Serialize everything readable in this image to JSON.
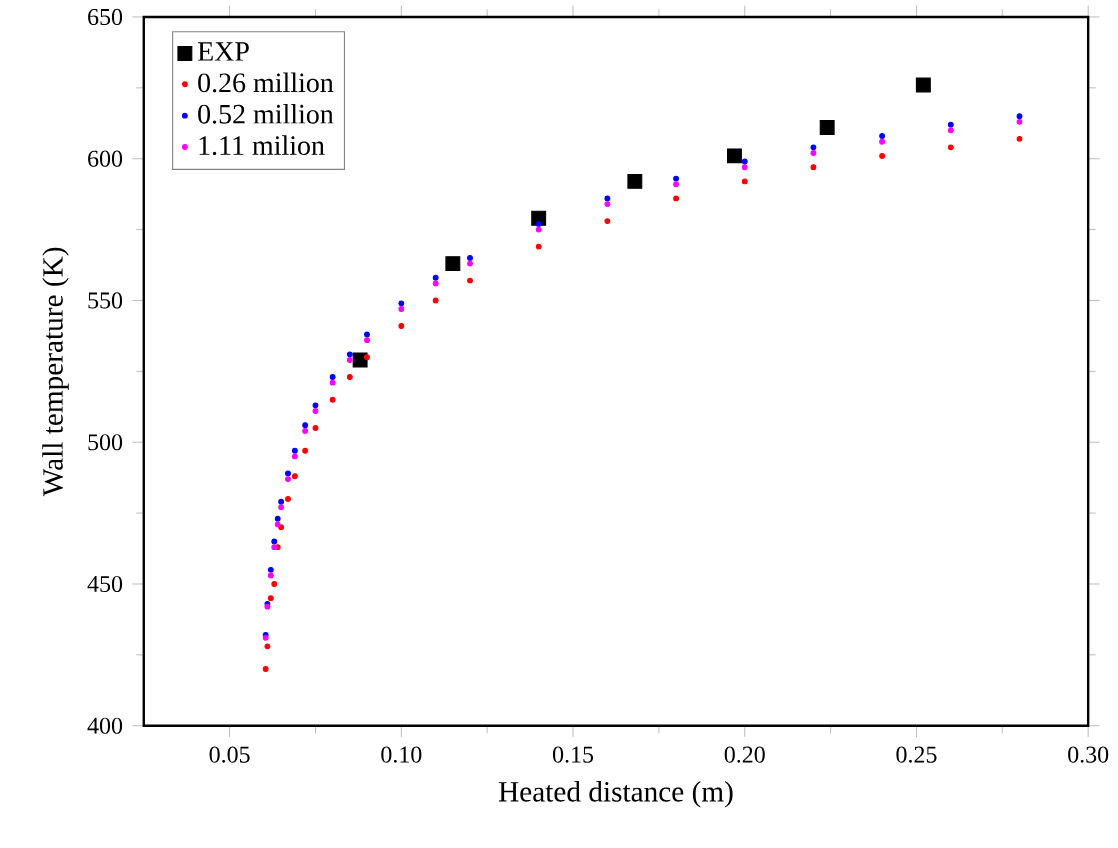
{
  "chart_data": {
    "type": "scatter",
    "xlabel": "Heated distance (m)",
    "ylabel": "Wall temperature (K)",
    "xlim": [
      0.025,
      0.3
    ],
    "ylim": [
      400,
      650
    ],
    "xticks": [
      {
        "value": 0.05,
        "label": "0.05"
      },
      {
        "value": 0.1,
        "label": "0.10"
      },
      {
        "value": 0.15,
        "label": "0.15"
      },
      {
        "value": 0.2,
        "label": "0.20"
      },
      {
        "value": 0.25,
        "label": "0.25"
      },
      {
        "value": 0.3,
        "label": "0.30"
      }
    ],
    "yticks": [
      400,
      450,
      500,
      550,
      600,
      650
    ],
    "legend": "top left",
    "series": [
      {
        "name": "EXP",
        "color": "#000000",
        "marker": "square",
        "x": [
          0.088,
          0.115,
          0.14,
          0.168,
          0.197,
          0.224,
          0.252
        ],
        "values": [
          529,
          563,
          579,
          592,
          601,
          611,
          626
        ]
      },
      {
        "name": "0.26 million",
        "color": "#ff0000",
        "marker": "circle",
        "x": [
          0.0605,
          0.061,
          0.062,
          0.063,
          0.064,
          0.065,
          0.067,
          0.069,
          0.072,
          0.075,
          0.08,
          0.085,
          0.09,
          0.1,
          0.11,
          0.12,
          0.14,
          0.16,
          0.18,
          0.2,
          0.22,
          0.24,
          0.26,
          0.28
        ],
        "values": [
          420,
          428,
          445,
          450,
          463,
          470,
          480,
          488,
          497,
          505,
          515,
          523,
          530,
          541,
          550,
          557,
          569,
          578,
          586,
          592,
          597,
          601,
          604,
          607
        ]
      },
      {
        "name": "0.52 million",
        "color": "#0000ff",
        "marker": "circle",
        "x": [
          0.0605,
          0.061,
          0.062,
          0.063,
          0.064,
          0.065,
          0.067,
          0.069,
          0.072,
          0.075,
          0.08,
          0.085,
          0.09,
          0.1,
          0.11,
          0.12,
          0.14,
          0.16,
          0.18,
          0.2,
          0.22,
          0.24,
          0.26,
          0.28
        ],
        "values": [
          432,
          443,
          455,
          465,
          473,
          479,
          489,
          497,
          506,
          513,
          523,
          531,
          538,
          549,
          558,
          565,
          577,
          586,
          593,
          599,
          604,
          608,
          612,
          615
        ]
      },
      {
        "name": "1.11 milion",
        "color": "#ff00ff",
        "marker": "circle",
        "x": [
          0.0605,
          0.061,
          0.062,
          0.063,
          0.064,
          0.065,
          0.067,
          0.069,
          0.072,
          0.075,
          0.08,
          0.085,
          0.09,
          0.1,
          0.11,
          0.12,
          0.14,
          0.16,
          0.18,
          0.2,
          0.22,
          0.24,
          0.26,
          0.28
        ],
        "values": [
          431,
          442,
          453,
          463,
          471,
          477,
          487,
          495,
          504,
          511,
          521,
          529,
          536,
          547,
          556,
          563,
          575,
          584,
          591,
          597,
          602,
          606,
          610,
          613
        ]
      }
    ]
  }
}
